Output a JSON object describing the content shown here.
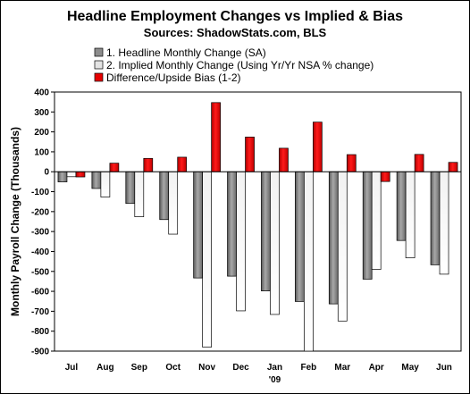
{
  "chart_data": {
    "type": "bar",
    "title": "Headline Employment Changes vs Implied & Bias",
    "subtitle": "Sources: ShadowStats.com, BLS",
    "ylabel": "Monthly Payroll Change (Thousands)",
    "xlabel": "",
    "categories": [
      "Jul",
      "Aug",
      "Sep",
      "Oct",
      "Nov",
      "Dec",
      "Jan",
      "Feb",
      "Mar",
      "Apr",
      "May",
      "Jun"
    ],
    "year_marker": {
      "category": "Jan",
      "label": "'09"
    },
    "ylim": [
      -900,
      400
    ],
    "yticks": [
      400,
      300,
      200,
      100,
      0,
      -100,
      -200,
      -300,
      -400,
      -500,
      -600,
      -700,
      -800,
      -900
    ],
    "grid": false,
    "legend_position": "top-left",
    "series": [
      {
        "name": "1. Headline Monthly Change (SA)",
        "color": "#8c8c8c",
        "values": [
          -51,
          -84,
          -159,
          -240,
          -533,
          -524,
          -598,
          -651,
          -663,
          -539,
          -345,
          -467
        ]
      },
      {
        "name": "2. Implied Monthly Change (Using Yr/Yr NSA % change)",
        "color": "#e4e4e4",
        "values": [
          -25,
          -127,
          -226,
          -313,
          -880,
          -698,
          -716,
          -900,
          -749,
          -490,
          -432,
          -514
        ]
      },
      {
        "name": "Difference/Upside Bias (1-2)",
        "color": "#e60000",
        "values": [
          -26,
          43,
          67,
          73,
          347,
          174,
          118,
          249,
          86,
          -49,
          87,
          47
        ]
      }
    ]
  }
}
